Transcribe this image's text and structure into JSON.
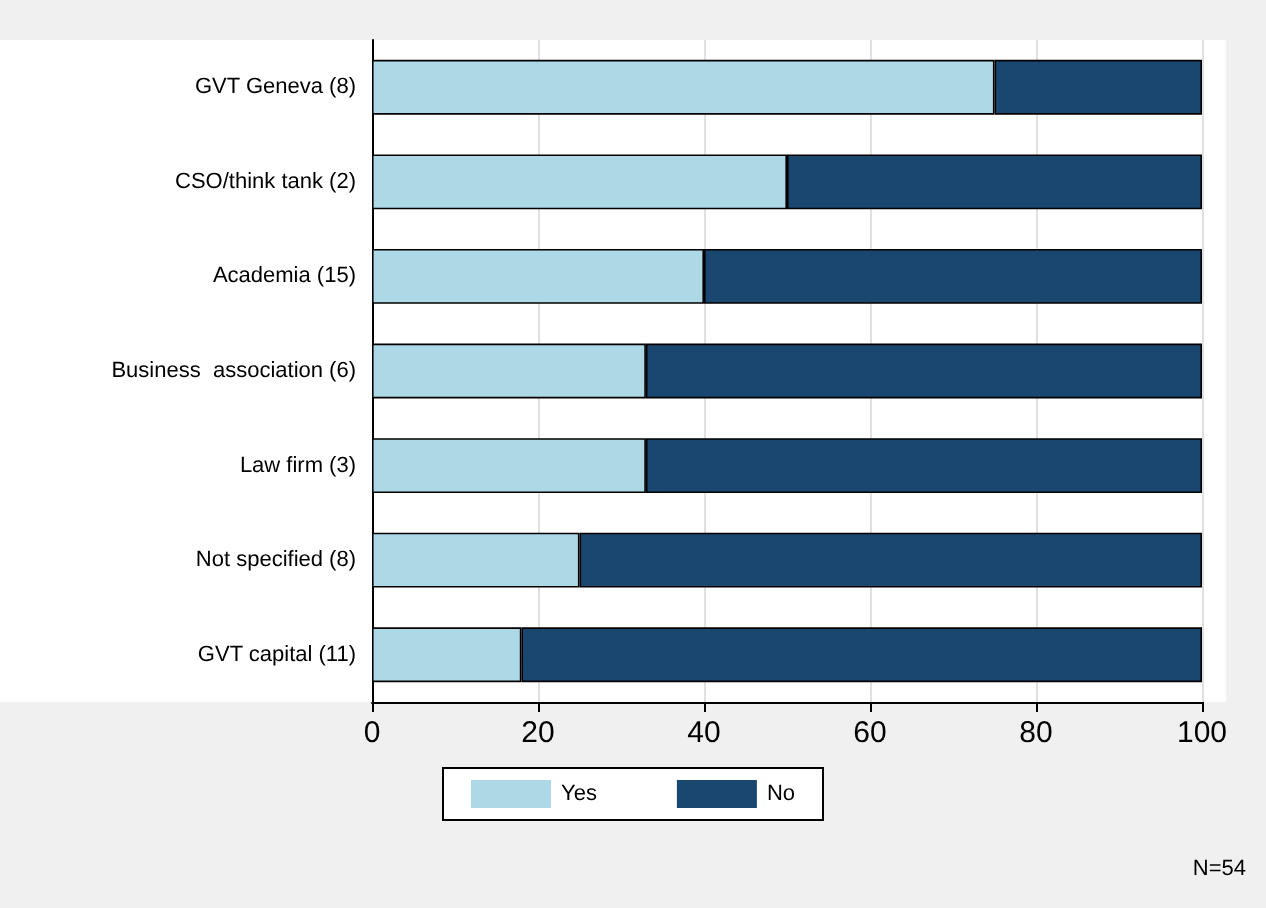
{
  "chart_data": {
    "type": "bar",
    "orientation": "horizontal",
    "stacked": true,
    "categories": [
      "GVT Geneva (8)",
      "CSO/think tank (2)",
      "Academia (15)",
      "Business  association (6)",
      "Law firm (3)",
      "Not specified (8)",
      "GVT capital (11)"
    ],
    "series": [
      {
        "name": "Yes",
        "color": "#add8e6",
        "values": [
          75,
          50,
          40,
          33,
          33,
          25,
          18
        ]
      },
      {
        "name": "No",
        "color": "#1a476f",
        "values": [
          25,
          50,
          60,
          67,
          67,
          75,
          82
        ]
      }
    ],
    "xlim": [
      0,
      100
    ],
    "xticks": [
      0,
      20,
      40,
      60,
      80,
      100
    ],
    "grid": "x",
    "legend": "bottom",
    "annotations": [
      "N=54"
    ]
  }
}
